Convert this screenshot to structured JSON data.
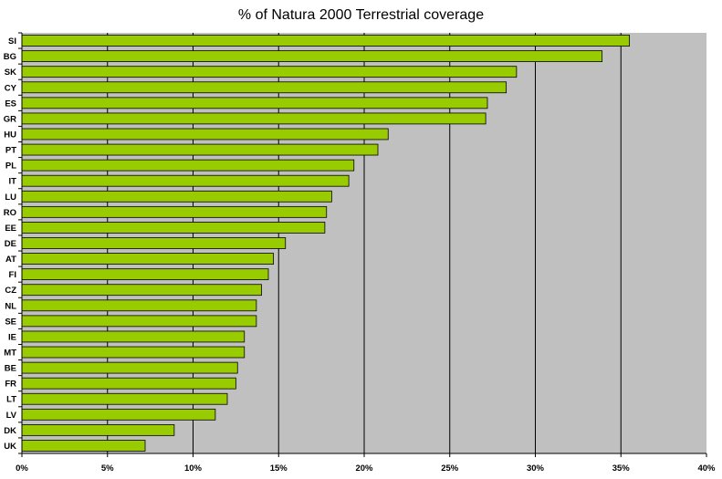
{
  "chart_data": {
    "type": "bar",
    "orientation": "horizontal",
    "title": "% of Natura 2000 Terrestrial coverage",
    "xlabel": "",
    "ylabel": "",
    "categories": [
      "SI",
      "BG",
      "SK",
      "CY",
      "ES",
      "GR",
      "HU",
      "PT",
      "PL",
      "IT",
      "LU",
      "RO",
      "EE",
      "DE",
      "AT",
      "FI",
      "CZ",
      "NL",
      "SE",
      "IE",
      "MT",
      "BE",
      "FR",
      "LT",
      "LV",
      "DK",
      "UK"
    ],
    "values": [
      35.5,
      33.9,
      28.9,
      28.3,
      27.2,
      27.1,
      21.4,
      20.8,
      19.4,
      19.1,
      18.1,
      17.8,
      17.7,
      15.4,
      14.7,
      14.4,
      14.0,
      13.7,
      13.7,
      13.0,
      13.0,
      12.6,
      12.5,
      12.0,
      11.3,
      8.9,
      7.2
    ],
    "xlim": [
      0,
      40
    ],
    "xticks": [
      "0%",
      "5%",
      "10%",
      "15%",
      "20%",
      "25%",
      "30%",
      "35%",
      "40%"
    ],
    "grid": "vertical",
    "legend": "none",
    "colors": {
      "bar_fill": "#99cc00",
      "bar_stroke": "#000000",
      "plot_bg": "#c0c0c0",
      "gridline": "#000000"
    }
  }
}
